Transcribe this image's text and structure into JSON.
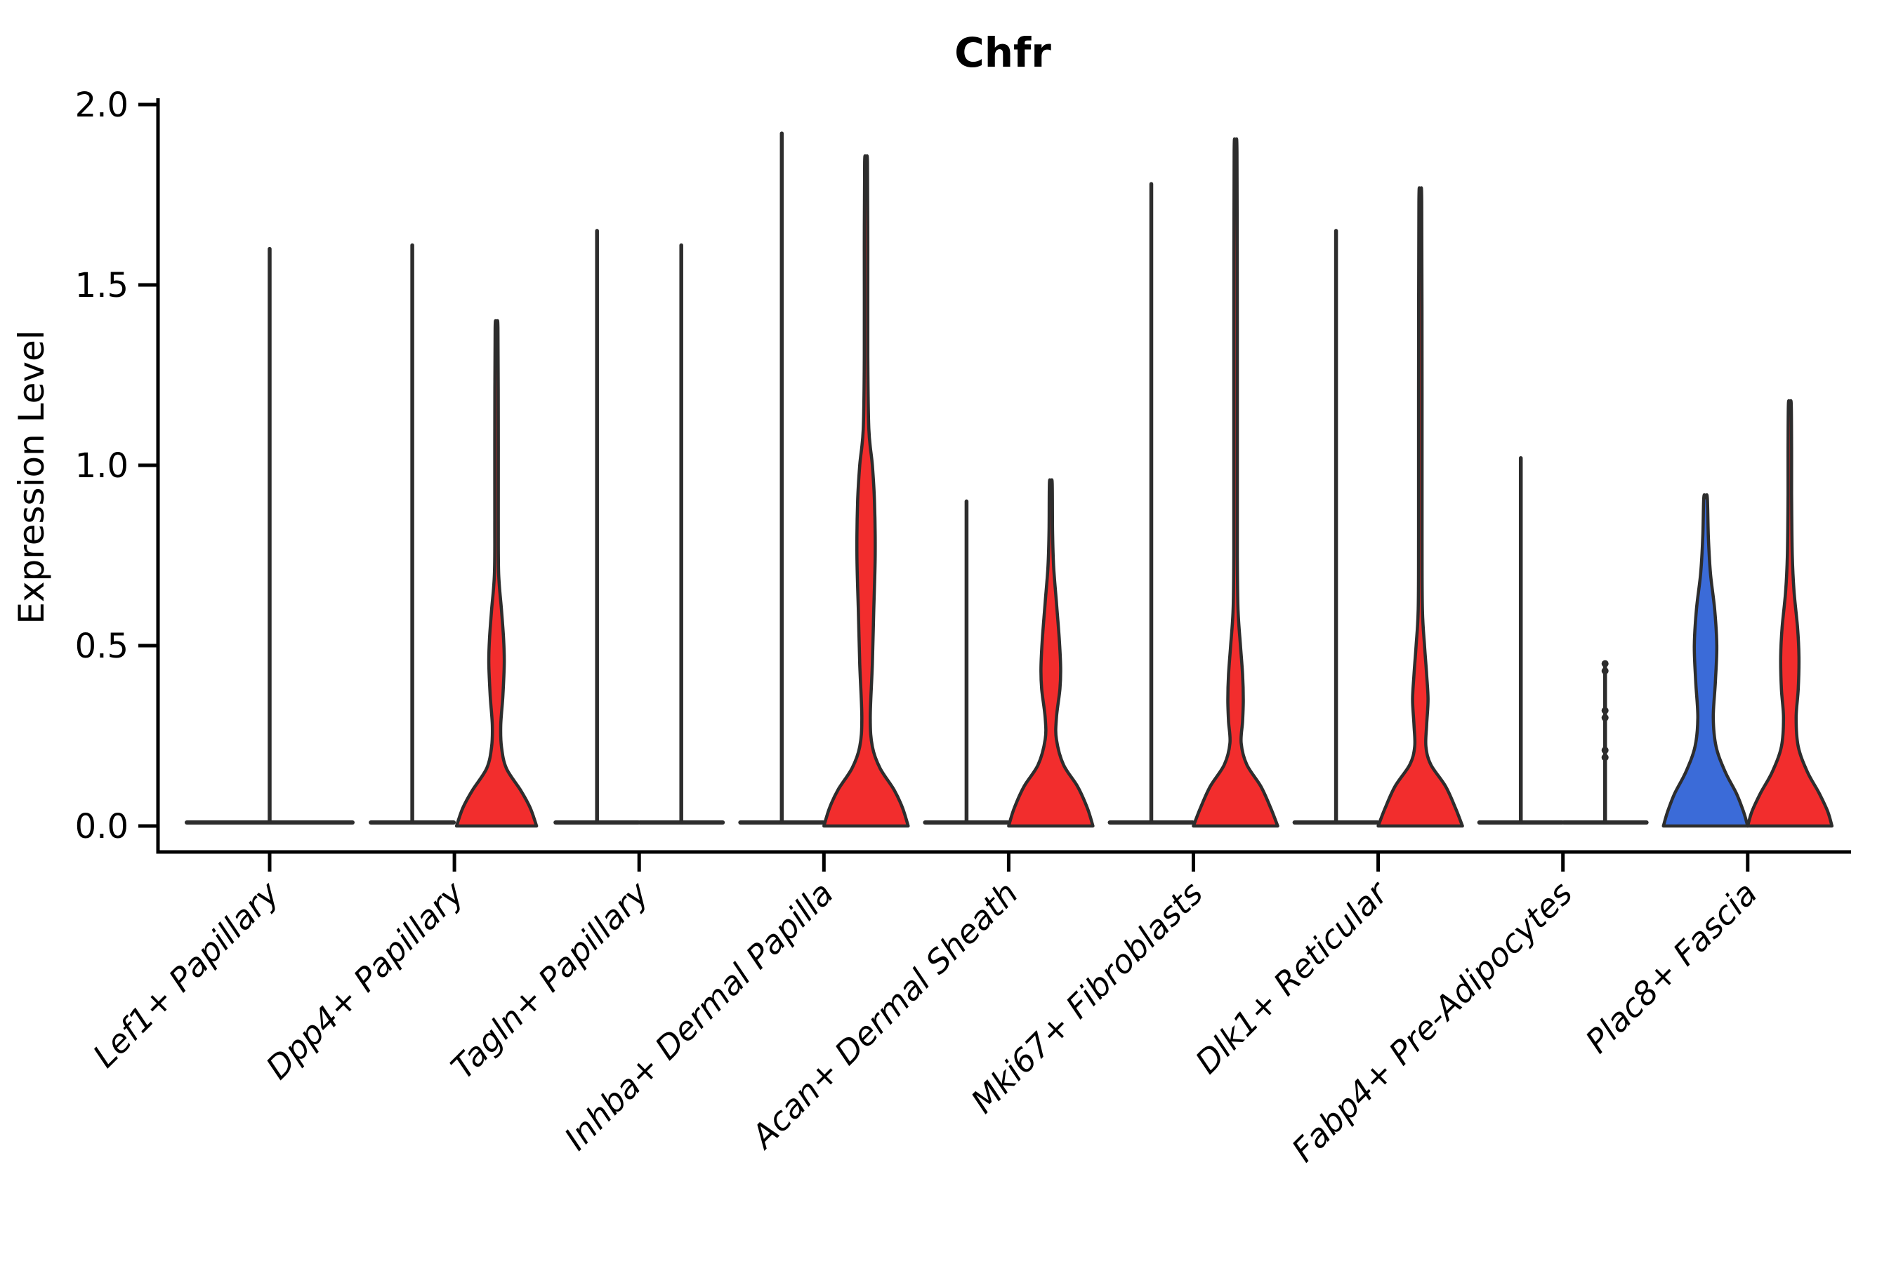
{
  "title": "Chfr",
  "y_axis": {
    "label": "Expression Level",
    "tick_labels": [
      "2.0",
      "1.5",
      "1.0",
      "0.5",
      "0.0"
    ],
    "tick_values": [
      2.0,
      1.5,
      1.0,
      0.5,
      0.0
    ]
  },
  "x_axis": {
    "categories": [
      "Lef1+ Papillary",
      "Dpp4+ Papillary",
      "Tagln+ Papillary",
      "Inhba+ Dermal Papilla",
      "Acan+ Dermal Sheath",
      "Mki67+ Fibroblasts",
      "Dlk1+ Reticular",
      "Fabp4+ Pre-Adipocytes",
      "Plac8+ Fascia"
    ]
  },
  "colors": {
    "red_fill": "#F22D2D",
    "blue_fill": "#3B6BD8",
    "outline": "#2D2D2D",
    "axis": "#000000"
  },
  "chart_data": {
    "type": "violin",
    "title": "Chfr",
    "xlabel": "",
    "ylabel": "Expression Level",
    "ylim": [
      0,
      2.0
    ],
    "yticks": [
      2.0,
      1.5,
      1.0,
      0.5,
      0.0
    ],
    "grid": false,
    "legend": "none",
    "categories": [
      "Lef1+ Papillary",
      "Dpp4+ Papillary",
      "Tagln+ Papillary",
      "Inhba+ Dermal Papilla",
      "Acan+ Dermal Sheath",
      "Mki67+ Fibroblasts",
      "Dlk1+ Reticular",
      "Fabp4+ Pre-Adipocytes",
      "Plac8+ Fascia"
    ],
    "violins": [
      {
        "category_index": 0,
        "slot": "center",
        "kind": "spike",
        "fill": "none",
        "max_expression": 1.6,
        "base_halfwidth": 118
      },
      {
        "category_index": 1,
        "slot": "left",
        "kind": "spike",
        "fill": "none",
        "max_expression": 1.61,
        "base_halfwidth": 59
      },
      {
        "category_index": 1,
        "slot": "right",
        "kind": "density",
        "fill": "red",
        "max_expression": 1.38,
        "profile": [
          [
            0,
            57
          ],
          [
            0.05,
            48
          ],
          [
            0.1,
            34
          ],
          [
            0.16,
            14
          ],
          [
            0.22,
            7
          ],
          [
            0.28,
            6
          ],
          [
            0.36,
            9
          ],
          [
            0.45,
            11
          ],
          [
            0.52,
            10
          ],
          [
            0.6,
            7
          ],
          [
            0.7,
            3
          ],
          [
            0.85,
            2.5
          ],
          [
            1.1,
            2.5
          ],
          [
            1.38,
            2
          ]
        ]
      },
      {
        "category_index": 2,
        "slot": "left",
        "kind": "spike",
        "fill": "none",
        "max_expression": 1.65,
        "base_halfwidth": 59
      },
      {
        "category_index": 2,
        "slot": "right",
        "kind": "spike",
        "fill": "none",
        "max_expression": 1.61,
        "base_halfwidth": 59
      },
      {
        "category_index": 3,
        "slot": "left",
        "kind": "spike",
        "fill": "none",
        "max_expression": 1.92,
        "base_halfwidth": 59
      },
      {
        "category_index": 3,
        "slot": "right",
        "kind": "density",
        "fill": "red",
        "max_expression": 1.84,
        "profile": [
          [
            0,
            60
          ],
          [
            0.05,
            52
          ],
          [
            0.1,
            40
          ],
          [
            0.16,
            20
          ],
          [
            0.22,
            9
          ],
          [
            0.3,
            6
          ],
          [
            0.45,
            9
          ],
          [
            0.6,
            11
          ],
          [
            0.75,
            13
          ],
          [
            0.9,
            12
          ],
          [
            1.0,
            9
          ],
          [
            1.1,
            4
          ],
          [
            1.3,
            2.5
          ],
          [
            1.6,
            2.5
          ],
          [
            1.84,
            2
          ]
        ]
      },
      {
        "category_index": 4,
        "slot": "left",
        "kind": "spike",
        "fill": "none",
        "max_expression": 0.9,
        "base_halfwidth": 59
      },
      {
        "category_index": 4,
        "slot": "right",
        "kind": "density",
        "fill": "red",
        "max_expression": 0.95,
        "profile": [
          [
            0,
            60
          ],
          [
            0.05,
            52
          ],
          [
            0.11,
            38
          ],
          [
            0.17,
            18
          ],
          [
            0.24,
            8
          ],
          [
            0.3,
            8
          ],
          [
            0.38,
            13
          ],
          [
            0.44,
            14
          ],
          [
            0.52,
            12
          ],
          [
            0.62,
            8
          ],
          [
            0.72,
            4
          ],
          [
            0.82,
            2.5
          ],
          [
            0.95,
            2
          ]
        ]
      },
      {
        "category_index": 5,
        "slot": "left",
        "kind": "spike",
        "fill": "none",
        "max_expression": 1.78,
        "base_halfwidth": 59
      },
      {
        "category_index": 5,
        "slot": "right",
        "kind": "density",
        "fill": "red",
        "max_expression": 1.87,
        "profile": [
          [
            0,
            60
          ],
          [
            0.05,
            50
          ],
          [
            0.11,
            36
          ],
          [
            0.17,
            16
          ],
          [
            0.23,
            8
          ],
          [
            0.29,
            10
          ],
          [
            0.35,
            11
          ],
          [
            0.42,
            10
          ],
          [
            0.5,
            7
          ],
          [
            0.6,
            3.5
          ],
          [
            0.75,
            2.5
          ],
          [
            1.0,
            2.5
          ],
          [
            1.4,
            2.5
          ],
          [
            1.87,
            2
          ]
        ]
      },
      {
        "category_index": 6,
        "slot": "left",
        "kind": "spike",
        "fill": "none",
        "max_expression": 1.65,
        "base_halfwidth": 59
      },
      {
        "category_index": 6,
        "slot": "right",
        "kind": "density",
        "fill": "red",
        "max_expression": 1.73,
        "profile": [
          [
            0,
            60
          ],
          [
            0.05,
            50
          ],
          [
            0.11,
            36
          ],
          [
            0.17,
            15
          ],
          [
            0.22,
            8
          ],
          [
            0.28,
            9
          ],
          [
            0.35,
            11
          ],
          [
            0.42,
            9
          ],
          [
            0.5,
            6
          ],
          [
            0.6,
            3
          ],
          [
            0.8,
            2.5
          ],
          [
            1.2,
            2.5
          ],
          [
            1.73,
            2
          ]
        ]
      },
      {
        "category_index": 7,
        "slot": "left",
        "kind": "spike",
        "fill": "none",
        "max_expression": 1.02,
        "base_halfwidth": 59
      },
      {
        "category_index": 7,
        "slot": "right",
        "kind": "spike",
        "fill": "none",
        "max_expression": 0.45,
        "base_halfwidth": 59,
        "jitter_points": [
          0.45,
          0.43,
          0.32,
          0.3,
          0.21,
          0.19
        ]
      },
      {
        "category_index": 8,
        "slot": "left",
        "kind": "density",
        "fill": "blue",
        "max_expression": 0.91,
        "profile": [
          [
            0,
            60
          ],
          [
            0.04,
            54
          ],
          [
            0.09,
            44
          ],
          [
            0.15,
            28
          ],
          [
            0.22,
            15
          ],
          [
            0.3,
            11
          ],
          [
            0.4,
            14
          ],
          [
            0.5,
            16
          ],
          [
            0.6,
            13
          ],
          [
            0.7,
            7
          ],
          [
            0.8,
            4
          ],
          [
            0.91,
            2.5
          ]
        ]
      },
      {
        "category_index": 8,
        "slot": "right",
        "kind": "density",
        "fill": "red",
        "max_expression": 1.17,
        "profile": [
          [
            0,
            60
          ],
          [
            0.04,
            54
          ],
          [
            0.09,
            42
          ],
          [
            0.15,
            25
          ],
          [
            0.22,
            12
          ],
          [
            0.3,
            9
          ],
          [
            0.38,
            12
          ],
          [
            0.47,
            13
          ],
          [
            0.55,
            11
          ],
          [
            0.65,
            6
          ],
          [
            0.75,
            3.5
          ],
          [
            0.92,
            2.5
          ],
          [
            1.05,
            2.5
          ],
          [
            1.17,
            2
          ]
        ]
      }
    ]
  }
}
